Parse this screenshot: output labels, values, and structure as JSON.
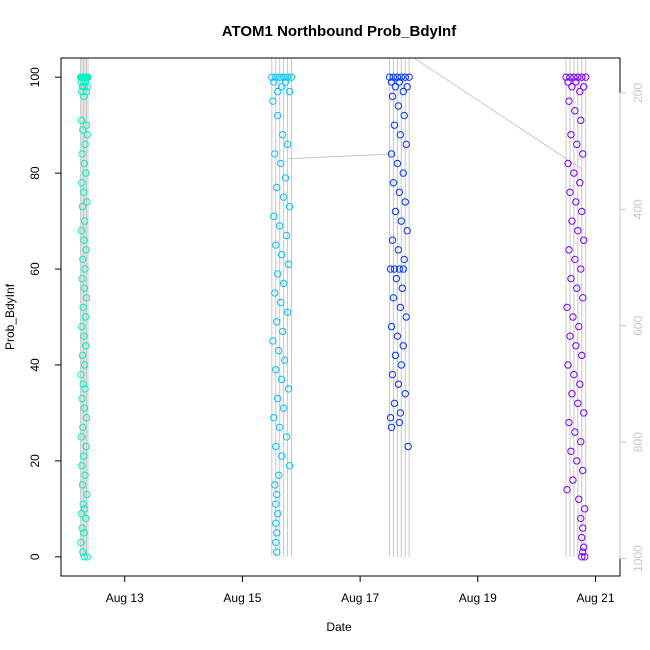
{
  "chart_data": {
    "type": "scatter",
    "title": "ATOM1 Northbound Prob_BdyInf",
    "xlabel": "Date",
    "ylabel": "Prob_BdyInf",
    "x_axis": {
      "kind": "date",
      "range": [
        "2024-08-11T22:00",
        "2024-08-21T10:00"
      ],
      "ticks": [
        "2024-08-13",
        "2024-08-15",
        "2024-08-17",
        "2024-08-19",
        "2024-08-21"
      ],
      "tick_labels": [
        "Aug 13",
        "Aug 15",
        "Aug 17",
        "Aug 19",
        "Aug 21"
      ]
    },
    "y_axis": {
      "range": [
        -4,
        104
      ],
      "ticks": [
        0,
        20,
        40,
        60,
        80,
        100
      ]
    },
    "y2_axis": {
      "range": [
        1030,
        140
      ],
      "ticks": [
        200,
        400,
        600,
        800,
        1000
      ],
      "color": "#c8c8c8"
    },
    "grid": false,
    "legend": "none",
    "series": [
      {
        "color": "#00f5c4",
        "x_start": "2024-08-12T06:00",
        "x_end": "2024-08-12T09:00",
        "points": [
          [
            0,
            100
          ],
          [
            0.05,
            99
          ],
          [
            0.1,
            100
          ],
          [
            0.15,
            97
          ],
          [
            0.2,
            100
          ],
          [
            0.25,
            98
          ],
          [
            0.3,
            100
          ],
          [
            0.35,
            99
          ],
          [
            0.4,
            100
          ],
          [
            0.45,
            96
          ],
          [
            0.5,
            100
          ],
          [
            0.55,
            98
          ],
          [
            0.6,
            100
          ],
          [
            0.65,
            99
          ],
          [
            0.7,
            100
          ],
          [
            0.75,
            100
          ],
          [
            0.8,
            97
          ],
          [
            0.85,
            100
          ],
          [
            0.9,
            98
          ],
          [
            0.95,
            100
          ],
          [
            1,
            100
          ],
          [
            0.1,
            91
          ],
          [
            0.3,
            89
          ],
          [
            0.6,
            86
          ],
          [
            0.8,
            90
          ],
          [
            0.2,
            84
          ],
          [
            0.5,
            82
          ],
          [
            0.9,
            88
          ],
          [
            0.15,
            78
          ],
          [
            0.4,
            76
          ],
          [
            0.7,
            80
          ],
          [
            0.25,
            73
          ],
          [
            0.55,
            70
          ],
          [
            0.85,
            74
          ],
          [
            0.1,
            68
          ],
          [
            0.45,
            66
          ],
          [
            0.75,
            64
          ],
          [
            0.3,
            62
          ],
          [
            0.6,
            60
          ],
          [
            0.2,
            58
          ],
          [
            0.5,
            56
          ],
          [
            0.8,
            54
          ],
          [
            0.35,
            52
          ],
          [
            0.65,
            50
          ],
          [
            0.15,
            48
          ],
          [
            0.45,
            46
          ],
          [
            0.7,
            44
          ],
          [
            0.25,
            42
          ],
          [
            0.55,
            40
          ],
          [
            0.05,
            38
          ],
          [
            0.35,
            36
          ],
          [
            0.6,
            35
          ],
          [
            0.2,
            33
          ],
          [
            0.5,
            31
          ],
          [
            0.8,
            29
          ],
          [
            0.3,
            27
          ],
          [
            0.1,
            25
          ],
          [
            0.75,
            23
          ],
          [
            0.4,
            21
          ],
          [
            0.15,
            19
          ],
          [
            0.6,
            17
          ],
          [
            0.25,
            15
          ],
          [
            0.85,
            13
          ],
          [
            0.35,
            11
          ],
          [
            0.55,
            10
          ],
          [
            0.1,
            9
          ],
          [
            0.7,
            8
          ],
          [
            0.2,
            6
          ],
          [
            0.45,
            5
          ],
          [
            0.05,
            3
          ],
          [
            0.3,
            1
          ],
          [
            0.5,
            0
          ],
          [
            0.9,
            0
          ]
        ]
      },
      {
        "color": "#00bfff",
        "x_start": "2024-08-15T12:00",
        "x_end": "2024-08-15T20:00",
        "points": [
          [
            0,
            100
          ],
          [
            0.1,
            99
          ],
          [
            0.2,
            100
          ],
          [
            0.3,
            97
          ],
          [
            0.4,
            100
          ],
          [
            0.5,
            98
          ],
          [
            0.6,
            100
          ],
          [
            0.7,
            99
          ],
          [
            0.8,
            100
          ],
          [
            0.9,
            97
          ],
          [
            1,
            100
          ],
          [
            0.05,
            95
          ],
          [
            0.3,
            92
          ],
          [
            0.55,
            88
          ],
          [
            0.8,
            86
          ],
          [
            0.15,
            84
          ],
          [
            0.45,
            82
          ],
          [
            0.7,
            79
          ],
          [
            0.25,
            77
          ],
          [
            0.6,
            75
          ],
          [
            0.9,
            73
          ],
          [
            0.1,
            71
          ],
          [
            0.4,
            69
          ],
          [
            0.75,
            67
          ],
          [
            0.2,
            65
          ],
          [
            0.5,
            63
          ],
          [
            0.85,
            61
          ],
          [
            0.3,
            59
          ],
          [
            0.6,
            57
          ],
          [
            0.15,
            55
          ],
          [
            0.45,
            53
          ],
          [
            0.8,
            51
          ],
          [
            0.25,
            49
          ],
          [
            0.55,
            47
          ],
          [
            0.05,
            45
          ],
          [
            0.35,
            43
          ],
          [
            0.65,
            41
          ],
          [
            0.2,
            39
          ],
          [
            0.5,
            37
          ],
          [
            0.85,
            35
          ],
          [
            0.3,
            33
          ],
          [
            0.6,
            31
          ],
          [
            0.1,
            29
          ],
          [
            0.4,
            27
          ],
          [
            0.75,
            25
          ],
          [
            0.2,
            23
          ],
          [
            0.5,
            21
          ],
          [
            0.9,
            19
          ],
          [
            0.35,
            17
          ],
          [
            0.15,
            15
          ],
          [
            0.25,
            13
          ],
          [
            0.2,
            11
          ],
          [
            0.3,
            9
          ],
          [
            0.2,
            7
          ],
          [
            0.25,
            5
          ],
          [
            0.2,
            3
          ],
          [
            0.25,
            1
          ]
        ]
      },
      {
        "color": "#0033ff",
        "x_start": "2024-08-17T12:00",
        "x_end": "2024-08-17T20:00",
        "points": [
          [
            0,
            100
          ],
          [
            0.1,
            99
          ],
          [
            0.2,
            100
          ],
          [
            0.3,
            98
          ],
          [
            0.4,
            100
          ],
          [
            0.5,
            99
          ],
          [
            0.6,
            100
          ],
          [
            0.7,
            97
          ],
          [
            0.8,
            100
          ],
          [
            0.9,
            98
          ],
          [
            1,
            100
          ],
          [
            0.15,
            96
          ],
          [
            0.45,
            94
          ],
          [
            0.75,
            92
          ],
          [
            0.25,
            90
          ],
          [
            0.55,
            88
          ],
          [
            0.85,
            86
          ],
          [
            0.1,
            84
          ],
          [
            0.4,
            82
          ],
          [
            0.7,
            80
          ],
          [
            0.2,
            78
          ],
          [
            0.5,
            76
          ],
          [
            0.8,
            74
          ],
          [
            0.3,
            72
          ],
          [
            0.6,
            70
          ],
          [
            0.9,
            68
          ],
          [
            0.15,
            66
          ],
          [
            0.45,
            64
          ],
          [
            0.75,
            62
          ],
          [
            0.05,
            60
          ],
          [
            0.25,
            60
          ],
          [
            0.5,
            60
          ],
          [
            0.7,
            60
          ],
          [
            0.35,
            58
          ],
          [
            0.65,
            56
          ],
          [
            0.2,
            54
          ],
          [
            0.55,
            52
          ],
          [
            0.85,
            50
          ],
          [
            0.1,
            48
          ],
          [
            0.4,
            46
          ],
          [
            0.7,
            44
          ],
          [
            0.3,
            42
          ],
          [
            0.6,
            40
          ],
          [
            0.15,
            38
          ],
          [
            0.45,
            36
          ],
          [
            0.8,
            34
          ],
          [
            0.25,
            32
          ],
          [
            0.55,
            30
          ],
          [
            0.05,
            29
          ],
          [
            0.5,
            28
          ],
          [
            0.1,
            27
          ],
          [
            0.95,
            23
          ]
        ]
      },
      {
        "color": "#7a00ff",
        "x_start": "2024-08-20T12:00",
        "x_end": "2024-08-20T20:00",
        "points": [
          [
            0,
            100
          ],
          [
            0.1,
            99
          ],
          [
            0.2,
            100
          ],
          [
            0.3,
            98
          ],
          [
            0.4,
            100
          ],
          [
            0.5,
            99
          ],
          [
            0.6,
            100
          ],
          [
            0.7,
            97
          ],
          [
            0.8,
            100
          ],
          [
            0.9,
            98
          ],
          [
            1,
            100
          ],
          [
            0.15,
            95
          ],
          [
            0.45,
            93
          ],
          [
            0.75,
            91
          ],
          [
            0.25,
            88
          ],
          [
            0.55,
            86
          ],
          [
            0.85,
            84
          ],
          [
            0.1,
            82
          ],
          [
            0.4,
            80
          ],
          [
            0.7,
            78
          ],
          [
            0.2,
            76
          ],
          [
            0.5,
            74
          ],
          [
            0.8,
            72
          ],
          [
            0.3,
            70
          ],
          [
            0.6,
            68
          ],
          [
            0.9,
            66
          ],
          [
            0.15,
            64
          ],
          [
            0.45,
            62
          ],
          [
            0.75,
            60
          ],
          [
            0.25,
            58
          ],
          [
            0.55,
            56
          ],
          [
            0.85,
            54
          ],
          [
            0.05,
            52
          ],
          [
            0.35,
            50
          ],
          [
            0.65,
            48
          ],
          [
            0.2,
            46
          ],
          [
            0.5,
            44
          ],
          [
            0.8,
            42
          ],
          [
            0.1,
            40
          ],
          [
            0.4,
            38
          ],
          [
            0.7,
            36
          ],
          [
            0.3,
            34
          ],
          [
            0.6,
            32
          ],
          [
            0.9,
            30
          ],
          [
            0.15,
            28
          ],
          [
            0.45,
            26
          ],
          [
            0.75,
            24
          ],
          [
            0.25,
            22
          ],
          [
            0.55,
            20
          ],
          [
            0.85,
            18
          ],
          [
            0.35,
            16
          ],
          [
            0.05,
            14
          ],
          [
            0.65,
            12
          ],
          [
            0.95,
            10
          ],
          [
            0.75,
            8
          ],
          [
            0.85,
            6
          ],
          [
            0.8,
            4
          ],
          [
            0.9,
            2
          ],
          [
            0.85,
            1
          ],
          [
            0.95,
            0
          ],
          [
            0.8,
            0
          ]
        ]
      }
    ],
    "connector_lines": [
      {
        "color": "#c8c8c8",
        "points": [
          [
            "2024-08-15T18:00",
            83
          ],
          [
            "2024-08-17T14:00",
            84
          ]
        ]
      },
      {
        "color": "#c8c8c8",
        "points": [
          [
            "2024-08-17T22:00",
            104
          ],
          [
            "2024-08-20T18:00",
            81
          ]
        ]
      }
    ]
  }
}
